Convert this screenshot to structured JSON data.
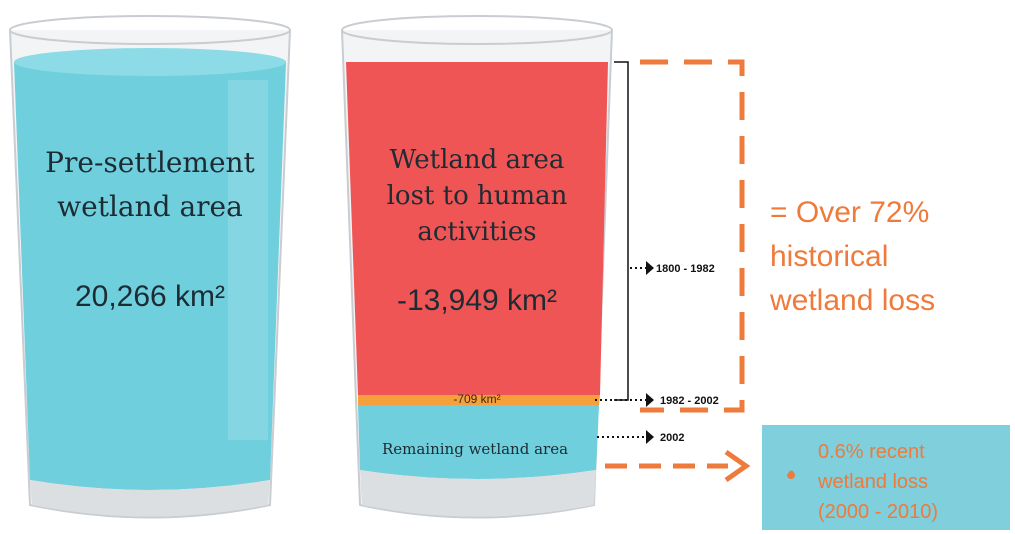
{
  "left_glass": {
    "label_lines": [
      "Pre-settlement",
      "wetland area"
    ],
    "area": "20,266 km²"
  },
  "right_glass": {
    "lost_label_lines": [
      "Wetland area",
      "lost to human",
      "activities"
    ],
    "lost_area": "-13,949 km²",
    "recent_area": "-709 km²",
    "remaining_label": "Remaining wetland area"
  },
  "periods": [
    "1800 - 1982",
    "1982 - 2002",
    "2002"
  ],
  "summary_lines": [
    "= Over 72%",
    "historical",
    "wetland loss"
  ],
  "recent_box_lines": [
    "0.6% recent",
    "wetland loss",
    "(2000 - 2010)"
  ]
}
